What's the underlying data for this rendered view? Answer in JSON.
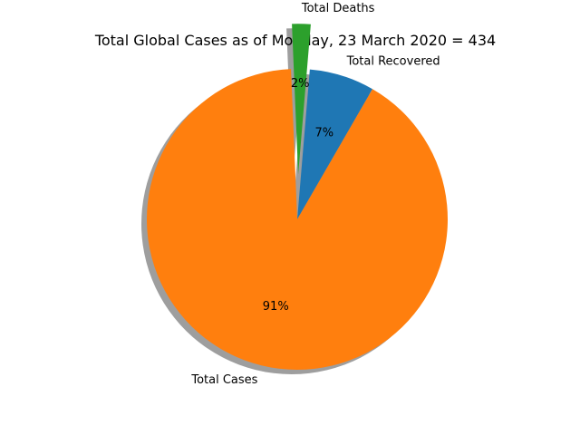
{
  "chart_data": {
    "type": "pie",
    "title": "Total Global Cases as of Monday, 23 March 2020 = 434",
    "slices": [
      {
        "label": "Total Recovered",
        "percent_label": "7%",
        "value": 7,
        "color": "#1f77b4",
        "exploded": false
      },
      {
        "label": "Total Deaths",
        "percent_label": "2%",
        "value": 2,
        "color": "#2ca02c",
        "exploded": true
      },
      {
        "label": "Total Cases",
        "percent_label": "91%",
        "value": 91,
        "color": "#ff7f0e",
        "exploded": false
      }
    ],
    "start_angle_deg": 60,
    "shadow": true,
    "legend": "none"
  }
}
